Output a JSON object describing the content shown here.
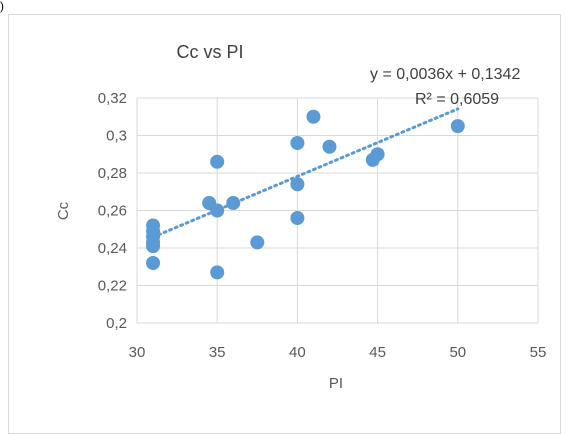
{
  "chart_data": {
    "type": "scatter",
    "title": "Cc vs PI",
    "xlabel": "PI",
    "ylabel": "Cc",
    "xlim": [
      30,
      55
    ],
    "ylim": [
      0.2,
      0.32
    ],
    "x_ticks": [
      "30",
      "35",
      "40",
      "45",
      "50",
      "55"
    ],
    "y_ticks": [
      "0,2",
      "0,22",
      "0,24",
      "0,26",
      "0,28",
      "0,3",
      "0,32"
    ],
    "grid": true,
    "series": [
      {
        "color": "#5b9bd5",
        "points": [
          {
            "x": 31,
            "y": 0.252
          },
          {
            "x": 31,
            "y": 0.249
          },
          {
            "x": 31,
            "y": 0.246
          },
          {
            "x": 31,
            "y": 0.243
          },
          {
            "x": 31,
            "y": 0.241
          },
          {
            "x": 31,
            "y": 0.232
          },
          {
            "x": 34.5,
            "y": 0.264
          },
          {
            "x": 35,
            "y": 0.286
          },
          {
            "x": 35,
            "y": 0.26
          },
          {
            "x": 35,
            "y": 0.227
          },
          {
            "x": 36,
            "y": 0.264
          },
          {
            "x": 37.5,
            "y": 0.243
          },
          {
            "x": 40,
            "y": 0.296
          },
          {
            "x": 40,
            "y": 0.274
          },
          {
            "x": 40,
            "y": 0.256
          },
          {
            "x": 41,
            "y": 0.31
          },
          {
            "x": 42,
            "y": 0.294
          },
          {
            "x": 44.7,
            "y": 0.287
          },
          {
            "x": 45,
            "y": 0.29
          },
          {
            "x": 50,
            "y": 0.305
          }
        ]
      }
    ],
    "trendline": {
      "type": "linear",
      "slope": 0.0036,
      "intercept": 0.1342,
      "x_range": [
        31,
        50
      ],
      "equation": "y = 0,0036x + 0,1342",
      "r_squared": "R² = 0,6059"
    }
  },
  "corner_mark": ")"
}
